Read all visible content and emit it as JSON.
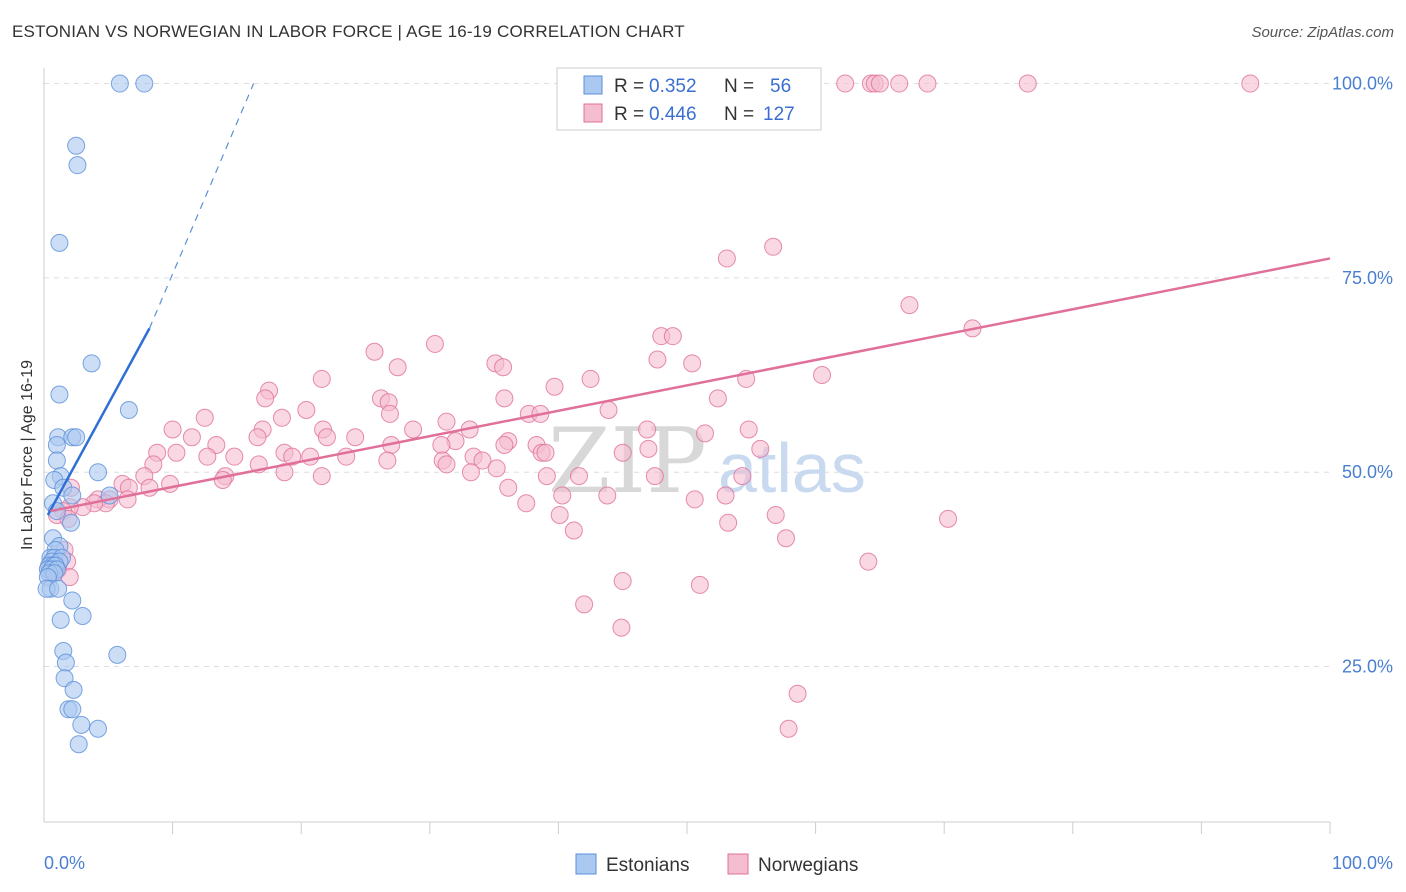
{
  "title": "ESTONIAN VS NORWEGIAN IN LABOR FORCE | AGE 16-19 CORRELATION CHART",
  "source": "Source: ZipAtlas.com",
  "watermark": {
    "zip": "ZIP",
    "atlas": "atlas"
  },
  "colors": {
    "blue": "#5b8fd9",
    "blue_fill": "#aac8f0",
    "pink": "#e0709a",
    "pink_fill": "#f5bdd0",
    "grid": "#dddddd"
  },
  "legend": [
    {
      "r_label": "R =",
      "r_value": "0.352",
      "n_label": "N =",
      "n_value": "56"
    },
    {
      "r_label": "R =",
      "r_value": "0.446",
      "n_label": "N =",
      "n_value": "127"
    }
  ],
  "chart_data": {
    "type": "scatter",
    "title": "ESTONIAN VS NORWEGIAN IN LABOR FORCE | AGE 16-19 CORRELATION CHART",
    "xlabel": "",
    "ylabel": "In Labor Force | Age 16-19",
    "xlim": [
      0,
      100
    ],
    "ylim": [
      5,
      102
    ],
    "x_tick_labels": [
      "0.0%",
      "100.0%"
    ],
    "y_ticks": [
      25,
      50,
      75,
      100
    ],
    "y_tick_labels": [
      "25.0%",
      "50.0%",
      "75.0%",
      "100.0%"
    ],
    "grid": true,
    "legend_position": "top-center",
    "series": [
      {
        "name": "Estonians",
        "trend": {
          "x0": 0.3,
          "y0": 44.5,
          "x1": 8.2,
          "y1": 68.5,
          "dash_to_x": 16.3,
          "dash_to_y": 100
        },
        "points": [
          [
            5.9,
            100
          ],
          [
            7.8,
            100
          ],
          [
            2.5,
            92
          ],
          [
            2.6,
            89.5
          ],
          [
            1.2,
            79.5
          ],
          [
            3.7,
            64
          ],
          [
            1.2,
            60
          ],
          [
            6.6,
            58
          ],
          [
            1.1,
            54.5
          ],
          [
            2.2,
            54.5
          ],
          [
            2.5,
            54.5
          ],
          [
            1.0,
            53.5
          ],
          [
            1.0,
            51.5
          ],
          [
            4.2,
            50
          ],
          [
            1.3,
            49.5
          ],
          [
            0.8,
            49
          ],
          [
            1.5,
            48
          ],
          [
            5.1,
            47
          ],
          [
            2.2,
            47
          ],
          [
            0.7,
            46
          ],
          [
            1.0,
            45
          ],
          [
            2.1,
            43.5
          ],
          [
            0.7,
            41.5
          ],
          [
            1.2,
            40.5
          ],
          [
            0.9,
            40
          ],
          [
            0.5,
            39
          ],
          [
            0.8,
            39
          ],
          [
            1.4,
            39
          ],
          [
            0.6,
            38.5
          ],
          [
            1.2,
            38.5
          ],
          [
            0.4,
            38
          ],
          [
            0.7,
            38
          ],
          [
            0.9,
            38
          ],
          [
            0.3,
            37.5
          ],
          [
            0.6,
            37.5
          ],
          [
            1.0,
            37.5
          ],
          [
            0.4,
            37
          ],
          [
            0.8,
            37
          ],
          [
            0.3,
            36.5
          ],
          [
            0.5,
            35
          ],
          [
            0.2,
            35
          ],
          [
            1.1,
            35
          ],
          [
            2.2,
            33.5
          ],
          [
            3.0,
            31.5
          ],
          [
            1.3,
            31
          ],
          [
            1.5,
            27
          ],
          [
            5.7,
            26.5
          ],
          [
            1.7,
            25.5
          ],
          [
            1.6,
            23.5
          ],
          [
            2.3,
            22
          ],
          [
            1.9,
            19.5
          ],
          [
            2.2,
            19.5
          ],
          [
            2.9,
            17.5
          ],
          [
            4.2,
            17
          ],
          [
            2.7,
            15
          ]
        ]
      },
      {
        "name": "Norwegians",
        "trend": {
          "x0": 0.5,
          "y0": 45,
          "x1": 100,
          "y1": 77.5
        },
        "points": [
          [
            62.3,
            100
          ],
          [
            64.3,
            100
          ],
          [
            64.6,
            100
          ],
          [
            65.0,
            100
          ],
          [
            66.5,
            100
          ],
          [
            68.7,
            100
          ],
          [
            76.5,
            100
          ],
          [
            93.8,
            100
          ],
          [
            56.7,
            79
          ],
          [
            53.1,
            77.5
          ],
          [
            67.3,
            71.5
          ],
          [
            72.2,
            68.5
          ],
          [
            48.0,
            67.5
          ],
          [
            48.9,
            67.5
          ],
          [
            30.4,
            66.5
          ],
          [
            25.7,
            65.5
          ],
          [
            47.7,
            64.5
          ],
          [
            50.4,
            64
          ],
          [
            35.1,
            64
          ],
          [
            35.7,
            63.5
          ],
          [
            27.5,
            63.5
          ],
          [
            60.5,
            62.5
          ],
          [
            54.6,
            62
          ],
          [
            42.5,
            62
          ],
          [
            21.6,
            62
          ],
          [
            39.7,
            61
          ],
          [
            17.5,
            60.5
          ],
          [
            26.2,
            59.5
          ],
          [
            17.2,
            59.5
          ],
          [
            35.8,
            59.5
          ],
          [
            52.4,
            59.5
          ],
          [
            26.8,
            59
          ],
          [
            20.4,
            58
          ],
          [
            43.9,
            58
          ],
          [
            37.7,
            57.5
          ],
          [
            38.6,
            57.5
          ],
          [
            26.9,
            57.5
          ],
          [
            12.5,
            57
          ],
          [
            18.5,
            57
          ],
          [
            31.3,
            56.5
          ],
          [
            46.9,
            55.5
          ],
          [
            10.0,
            55.5
          ],
          [
            17.0,
            55.5
          ],
          [
            21.7,
            55.5
          ],
          [
            28.7,
            55.5
          ],
          [
            33.1,
            55.5
          ],
          [
            54.8,
            55.5
          ],
          [
            51.4,
            55
          ],
          [
            11.5,
            54.5
          ],
          [
            16.6,
            54.5
          ],
          [
            22.0,
            54.5
          ],
          [
            24.2,
            54.5
          ],
          [
            36.1,
            54
          ],
          [
            32.0,
            54
          ],
          [
            30.9,
            53.5
          ],
          [
            13.4,
            53.5
          ],
          [
            27.0,
            53.5
          ],
          [
            35.8,
            53.5
          ],
          [
            38.3,
            53.5
          ],
          [
            47.0,
            53
          ],
          [
            55.7,
            53
          ],
          [
            45.0,
            52.5
          ],
          [
            38.7,
            52.5
          ],
          [
            39.0,
            52.5
          ],
          [
            8.8,
            52.5
          ],
          [
            10.3,
            52.5
          ],
          [
            18.7,
            52.5
          ],
          [
            14.8,
            52
          ],
          [
            12.7,
            52
          ],
          [
            19.3,
            52
          ],
          [
            20.7,
            52
          ],
          [
            23.5,
            52
          ],
          [
            33.4,
            52
          ],
          [
            34.1,
            51.5
          ],
          [
            31.0,
            51.5
          ],
          [
            26.7,
            51.5
          ],
          [
            31.3,
            51
          ],
          [
            16.7,
            51
          ],
          [
            8.5,
            51
          ],
          [
            35.2,
            50.5
          ],
          [
            33.2,
            50
          ],
          [
            18.7,
            50
          ],
          [
            41.6,
            49.5
          ],
          [
            47.5,
            49.5
          ],
          [
            39.1,
            49.5
          ],
          [
            54.3,
            49.5
          ],
          [
            21.6,
            49.5
          ],
          [
            14.1,
            49.5
          ],
          [
            7.8,
            49.5
          ],
          [
            13.9,
            49
          ],
          [
            9.8,
            48.5
          ],
          [
            6.1,
            48.5
          ],
          [
            6.6,
            48
          ],
          [
            8.2,
            48
          ],
          [
            2.1,
            48
          ],
          [
            36.1,
            48
          ],
          [
            43.8,
            47
          ],
          [
            40.3,
            47
          ],
          [
            50.6,
            46.5
          ],
          [
            37.5,
            46
          ],
          [
            53.0,
            47
          ],
          [
            5.1,
            46.5
          ],
          [
            6.5,
            46.5
          ],
          [
            4.2,
            46.5
          ],
          [
            4.8,
            46
          ],
          [
            3.9,
            46
          ],
          [
            3.0,
            45.5
          ],
          [
            2.0,
            45.5
          ],
          [
            1.5,
            45
          ],
          [
            1.0,
            44.5
          ],
          [
            1.9,
            44
          ],
          [
            53.2,
            43.5
          ],
          [
            41.2,
            42.5
          ],
          [
            40.1,
            44.5
          ],
          [
            56.9,
            44.5
          ],
          [
            70.3,
            44
          ],
          [
            64.1,
            38.5
          ],
          [
            57.7,
            41.5
          ],
          [
            1.6,
            40
          ],
          [
            0.8,
            38
          ],
          [
            1.8,
            38.5
          ],
          [
            0.5,
            38
          ],
          [
            1.1,
            37.5
          ],
          [
            0.6,
            37
          ],
          [
            2.0,
            36.5
          ],
          [
            45.0,
            36
          ],
          [
            51.0,
            35.5
          ],
          [
            42.0,
            33
          ],
          [
            44.9,
            30
          ],
          [
            58.6,
            21.5
          ],
          [
            57.9,
            17
          ]
        ]
      }
    ]
  },
  "bottom_legend": [
    "Estonians",
    "Norwegians"
  ]
}
